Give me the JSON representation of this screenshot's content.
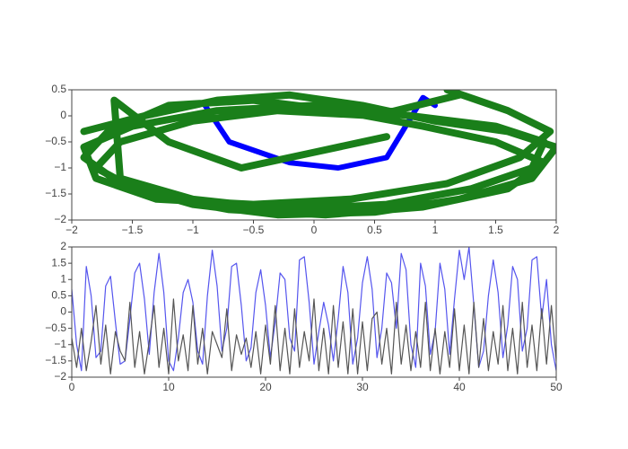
{
  "chart_data": [
    {
      "type": "line",
      "xlim": [
        -2,
        2
      ],
      "xticks": [
        {
          "value": -2,
          "label": "−2"
        },
        {
          "value": -1.5,
          "label": "−1.5"
        },
        {
          "value": -1,
          "label": "−1"
        },
        {
          "value": -0.5,
          "label": "−0.5"
        },
        0,
        0.5,
        1,
        1.5,
        2
      ],
      "ylim": [
        -2,
        0.5
      ],
      "yticks": [
        0.5,
        0,
        {
          "value": -0.5,
          "label": "−0.5"
        },
        {
          "value": -1,
          "label": "−1"
        },
        {
          "value": -1.5,
          "label": "−1.5"
        },
        {
          "value": -2,
          "label": "−2"
        }
      ],
      "series": [
        {
          "color": "#0000ff",
          "width": 6,
          "x": [
            -0.9,
            -0.7,
            -0.2,
            0.2,
            0.6,
            0.9,
            1.0
          ],
          "values": [
            0.2,
            -0.5,
            -0.9,
            -1.0,
            -0.8,
            0.35,
            0.2
          ]
        },
        {
          "color": "#1a7f1a",
          "width": 8,
          "x": [
            -1.9,
            -1.4,
            -0.8,
            -0.2,
            0.4,
            1.0,
            1.6,
            2.0,
            1.8,
            1.2,
            0.5,
            -0.3,
            -1.0,
            -1.6,
            -1.9,
            -1.7,
            -1.2,
            -0.5,
            0.2,
            0.9,
            1.5,
            1.9,
            1.6,
            0.9,
            0.1,
            -0.7,
            -1.4,
            -1.8,
            -1.6,
            -1.0,
            -0.3,
            0.5,
            1.2,
            1.1,
            1.6,
            1.95,
            1.7,
            1.1,
            0.3,
            -0.5,
            -1.3,
            -1.8,
            -1.9,
            -1.5,
            -0.8,
            0.0,
            0.8,
            1.5,
            1.9,
            1.8,
            1.3,
            0.6,
            -0.2,
            -1.0,
            -1.6,
            -1.65,
            -1.2,
            -0.6,
            0.0,
            0.6
          ],
          "values": [
            -0.3,
            0.0,
            0.3,
            0.4,
            0.2,
            -0.1,
            -0.3,
            -0.6,
            -1.2,
            -1.6,
            -1.85,
            -1.9,
            -1.7,
            -1.3,
            -0.8,
            -0.3,
            0.2,
            0.3,
            0.1,
            -0.2,
            -0.5,
            -0.9,
            -1.4,
            -1.75,
            -1.9,
            -1.8,
            -1.5,
            -1.0,
            -0.5,
            -0.1,
            0.1,
            0.0,
            0.4,
            0.5,
            0.1,
            -0.3,
            -0.8,
            -1.3,
            -1.6,
            -1.7,
            -1.6,
            -1.2,
            -0.6,
            -0.2,
            0.1,
            0.2,
            0.0,
            -0.2,
            -0.5,
            -1.0,
            -1.4,
            -1.7,
            -1.8,
            -1.6,
            -1.2,
            0.3,
            -0.5,
            -1.0,
            -0.7,
            -0.4
          ]
        }
      ]
    },
    {
      "type": "line",
      "xlim": [
        0,
        50
      ],
      "xticks": [
        0,
        10,
        20,
        30,
        40,
        50
      ],
      "ylim": [
        -2,
        2
      ],
      "yticks": [
        2,
        1.5,
        1,
        0.5,
        0,
        {
          "value": -0.5,
          "label": "−0.5"
        },
        {
          "value": -1,
          "label": "−1"
        },
        {
          "value": -1.5,
          "label": "−1.5"
        },
        {
          "value": -2,
          "label": "−2"
        }
      ],
      "x": [
        0,
        0.5,
        1,
        1.5,
        2,
        2.5,
        3,
        3.5,
        4,
        4.5,
        5,
        5.5,
        6,
        6.5,
        7,
        7.5,
        8,
        8.5,
        9,
        9.5,
        10,
        10.5,
        11,
        11.5,
        12,
        12.5,
        13,
        13.5,
        14,
        14.5,
        15,
        15.5,
        16,
        16.5,
        17,
        17.5,
        18,
        18.5,
        19,
        19.5,
        20,
        20.5,
        21,
        21.5,
        22,
        22.5,
        23,
        23.5,
        24,
        24.5,
        25,
        25.5,
        26,
        26.5,
        27,
        27.5,
        28,
        28.5,
        29,
        29.5,
        30,
        30.5,
        31,
        31.5,
        32,
        32.5,
        33,
        33.5,
        34,
        34.5,
        35,
        35.5,
        36,
        36.5,
        37,
        37.5,
        38,
        38.5,
        39,
        39.5,
        40,
        40.5,
        41,
        41.5,
        42,
        42.5,
        43,
        43.5,
        44,
        44.5,
        45,
        45.5,
        46,
        46.5,
        47,
        47.5,
        48,
        48.5,
        49,
        49.5,
        50
      ],
      "series": [
        {
          "color": "#5555ee",
          "width": 1.2,
          "values": [
            0.7,
            -1.0,
            -1.8,
            1.4,
            0.5,
            -1.4,
            -1.2,
            0.8,
            1.1,
            -0.3,
            -1.6,
            -1.5,
            -0.2,
            1.2,
            1.5,
            0.4,
            -1.3,
            0.6,
            1.8,
            0.6,
            -1.5,
            -1.8,
            -0.8,
            0.6,
            1.0,
            0.3,
            -1.2,
            -1.6,
            0.5,
            1.9,
            0.8,
            -1.2,
            -0.5,
            1.4,
            1.5,
            0.2,
            -1.5,
            -1.1,
            0.6,
            1.3,
            0.2,
            -1.4,
            -0.3,
            1.2,
            1.0,
            -0.8,
            -1.2,
            1.6,
            1.7,
            0.3,
            -1.6,
            -0.6,
            0.3,
            -0.4,
            -1.5,
            -0.2,
            1.4,
            0.6,
            -1.6,
            -0.8,
            0.9,
            1.7,
            0.7,
            -1.4,
            -0.5,
            1.2,
            0.9,
            -0.5,
            1.8,
            1.3,
            -1.0,
            -1.7,
            1.5,
            0.8,
            -1.3,
            -0.6,
            1.5,
            0.7,
            -1.3,
            0.4,
            1.9,
            1.0,
            2.0,
            0.2,
            -1.7,
            -1.2,
            0.5,
            1.6,
            0.6,
            -1.4,
            -0.4,
            1.4,
            1.0,
            -1.2,
            -0.5,
            1.6,
            1.7,
            -0.2,
            1.0,
            -1.0,
            -1.8
          ]
        },
        {
          "color": "#555555",
          "width": 1.2,
          "values": [
            -0.8,
            -1.7,
            -0.5,
            -1.8,
            -0.9,
            0.2,
            -1.6,
            -0.4,
            -1.9,
            -0.6,
            -1.2,
            -1.5,
            0.3,
            -1.7,
            -0.6,
            -1.9,
            -0.9,
            0.2,
            -1.7,
            -0.5,
            -1.9,
            0.4,
            -1.5,
            -0.7,
            -1.8,
            0.2,
            -1.6,
            -0.5,
            -1.9,
            -0.6,
            -1.0,
            -1.4,
            0.1,
            -1.8,
            -0.7,
            -1.3,
            -0.8,
            -1.7,
            -0.6,
            -1.9,
            -0.4,
            -1.6,
            0.2,
            -1.8,
            -0.5,
            -1.9,
            0.1,
            -1.7,
            -0.6,
            -1.5,
            0.4,
            -1.8,
            -0.5,
            -1.9,
            0.2,
            -1.7,
            -0.3,
            -1.9,
            0.1,
            -1.9,
            -0.3,
            -1.8,
            -0.2,
            0.0,
            -1.6,
            -0.5,
            -1.9,
            0.3,
            -1.6,
            -0.4,
            -1.8,
            -0.6,
            -1.7,
            0.3,
            -1.8,
            -0.5,
            -1.9,
            -0.6,
            -1.7,
            0.1,
            -1.8,
            -0.4,
            -1.9,
            0.3,
            -1.7,
            -0.2,
            -1.8,
            -0.6,
            -1.6,
            0.2,
            -1.8,
            -0.5,
            -1.9,
            0.3,
            -1.7,
            -0.4,
            -1.8,
            0.1,
            -1.6,
            0.2,
            -1.5
          ]
        }
      ]
    }
  ]
}
